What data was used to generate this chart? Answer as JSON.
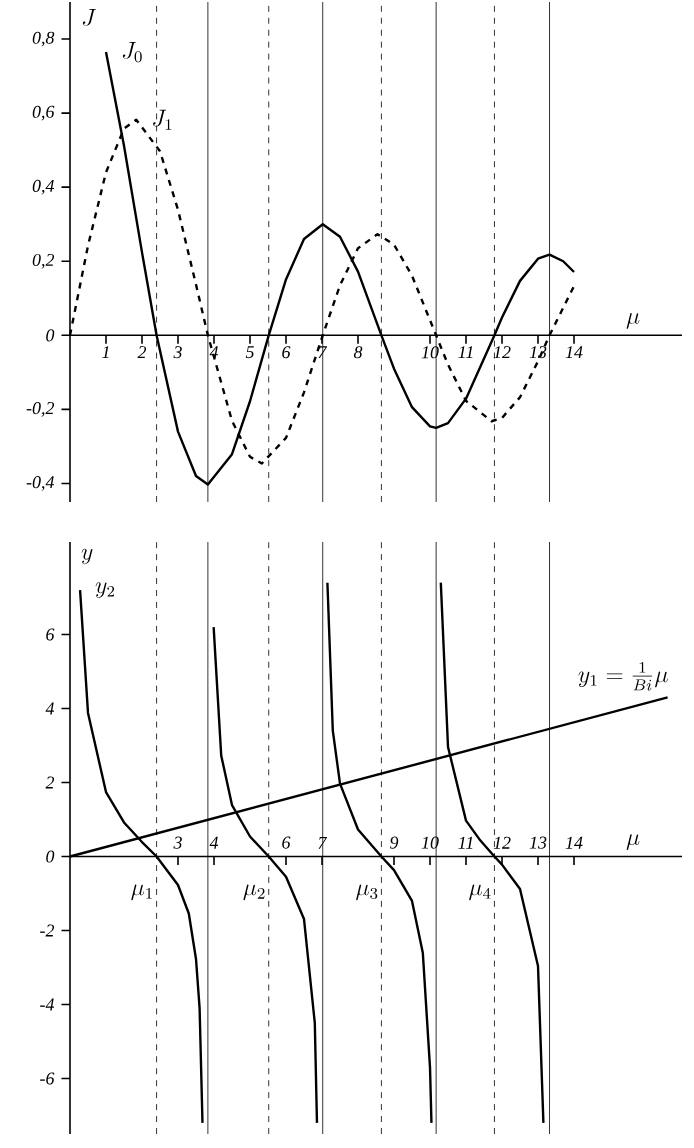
{
  "chart_data": [
    {
      "type": "line",
      "xlabel": "\\mu",
      "ylabel": "J",
      "xlim": [
        0,
        17
      ],
      "ylim": [
        -0.45,
        0.9
      ],
      "xticks": [
        1,
        2,
        3,
        4,
        5,
        6,
        7,
        8,
        10,
        11,
        12,
        13,
        14
      ],
      "yticks": [
        {
          "value": 0.8,
          "label": "0,8"
        },
        {
          "value": 0.6,
          "label": "0,6"
        },
        {
          "value": 0.4,
          "label": "0,4"
        },
        {
          "value": 0.2,
          "label": "0,2"
        },
        0,
        {
          "value": -0.2,
          "label": "-0,2"
        },
        {
          "value": -0.4,
          "label": "-0,4"
        }
      ],
      "marker": "none",
      "series": [
        {
          "name": "J_0",
          "color": "#000000",
          "line_style": "solid",
          "x": [
            1,
            1.5,
            2,
            2.405,
            3,
            3.5,
            3.83,
            4.5,
            5,
            5.52,
            6,
            6.5,
            7.02,
            7.5,
            8,
            8.65,
            9,
            9.5,
            10,
            10.17,
            10.5,
            11,
            11.79,
            12,
            12.5,
            13,
            13.32,
            13.7,
            14
          ],
          "values": [
            0.765,
            0.512,
            0.224,
            0,
            -0.26,
            -0.38,
            -0.403,
            -0.321,
            -0.178,
            0,
            0.151,
            0.26,
            0.3,
            0.266,
            0.172,
            0,
            -0.09,
            -0.194,
            -0.246,
            -0.25,
            -0.237,
            -0.171,
            0,
            0.048,
            0.147,
            0.207,
            0.218,
            0.2,
            0.171
          ]
        },
        {
          "name": "J_1",
          "color": "#000000",
          "line_style": "dashed",
          "x": [
            0,
            0.5,
            1,
            1.5,
            1.84,
            2.5,
            3,
            3.5,
            3.83,
            4.5,
            5,
            5.33,
            6,
            6.5,
            7.02,
            7.5,
            8,
            8.54,
            9,
            9.5,
            10.17,
            10.5,
            11,
            11.71,
            12,
            12.5,
            13,
            13.32,
            14
          ],
          "values": [
            0,
            0.242,
            0.44,
            0.558,
            0.582,
            0.497,
            0.339,
            0.137,
            0,
            -0.231,
            -0.328,
            -0.346,
            -0.277,
            -0.154,
            0,
            0.135,
            0.235,
            0.273,
            0.245,
            0.161,
            0,
            -0.079,
            -0.177,
            -0.232,
            -0.223,
            -0.167,
            -0.07,
            0,
            0.133
          ]
        }
      ],
      "ref_lines": [
        {
          "axis": "x",
          "value": 2.405,
          "line_style": "dashed"
        },
        {
          "axis": "x",
          "value": 5.52,
          "line_style": "dashed"
        },
        {
          "axis": "x",
          "value": 8.65,
          "line_style": "dashed"
        },
        {
          "axis": "x",
          "value": 11.79,
          "line_style": "dashed"
        },
        {
          "axis": "x",
          "value": 3.83,
          "line_style": "solid"
        },
        {
          "axis": "x",
          "value": 7.02,
          "line_style": "solid"
        },
        {
          "axis": "x",
          "value": 10.17,
          "line_style": "solid"
        },
        {
          "axis": "x",
          "value": 13.32,
          "line_style": "solid"
        }
      ]
    },
    {
      "type": "line",
      "xlabel": "\\mu",
      "ylabel": "y",
      "xlim": [
        0,
        17
      ],
      "ylim": [
        -7.5,
        8.5
      ],
      "xticks": [
        3,
        4,
        6,
        7,
        9,
        10,
        11,
        12,
        13,
        14
      ],
      "yticks": [
        -6,
        -4,
        -2,
        0,
        2,
        4,
        6
      ],
      "marker": "none",
      "series": [
        {
          "name": "y_2",
          "color": "#000000",
          "line_style": "solid",
          "x": [
            0.28,
            0.5,
            1,
            1.5,
            2,
            2.405,
            3,
            3.3,
            3.5,
            3.6,
            3.68,
            3.83,
            3.99,
            4.2,
            4.5,
            5,
            5.52,
            6,
            6.5,
            6.8,
            6.86,
            7.02,
            7.15,
            7.3,
            7.5,
            8,
            8.65,
            9,
            9.5,
            9.8,
            10,
            10.04,
            10.17,
            10.3,
            10.5,
            11,
            11.4,
            11.79,
            12,
            12.5,
            13,
            13.15
          ],
          "values": [
            7.2,
            3.88,
            1.74,
            0.92,
            0.39,
            0,
            -0.77,
            -1.54,
            -2.77,
            -4.1,
            -7.2,
            null,
            6.2,
            2.73,
            1.39,
            0.54,
            0,
            -0.55,
            -1.69,
            -4.5,
            -7.2,
            null,
            7.4,
            3.4,
            1.97,
            0.73,
            0,
            -0.37,
            -1.2,
            -2.6,
            -5.7,
            -7.2,
            null,
            7.4,
            2.96,
            0.97,
            0.43,
            0,
            -0.22,
            -0.88,
            -2.96,
            -7.2
          ]
        },
        {
          "name": "y_1=\\frac{1}{Bi}\\mu",
          "color": "#000000",
          "line_style": "solid",
          "x": [
            0,
            16.6
          ],
          "values": [
            0,
            4.3
          ]
        }
      ],
      "ref_lines": [
        {
          "axis": "x",
          "value": 2.405,
          "line_style": "dashed"
        },
        {
          "axis": "x",
          "value": 5.52,
          "line_style": "dashed"
        },
        {
          "axis": "x",
          "value": 8.65,
          "line_style": "dashed"
        },
        {
          "axis": "x",
          "value": 11.79,
          "line_style": "dashed"
        },
        {
          "axis": "x",
          "value": 3.83,
          "line_style": "solid"
        },
        {
          "axis": "x",
          "value": 7.02,
          "line_style": "solid"
        },
        {
          "axis": "x",
          "value": 10.17,
          "line_style": "solid"
        },
        {
          "axis": "x",
          "value": 13.32,
          "line_style": "solid"
        }
      ],
      "annotations": [
        "\\mu_1",
        "\\mu_2",
        "\\mu_3",
        "\\mu_4"
      ]
    }
  ]
}
